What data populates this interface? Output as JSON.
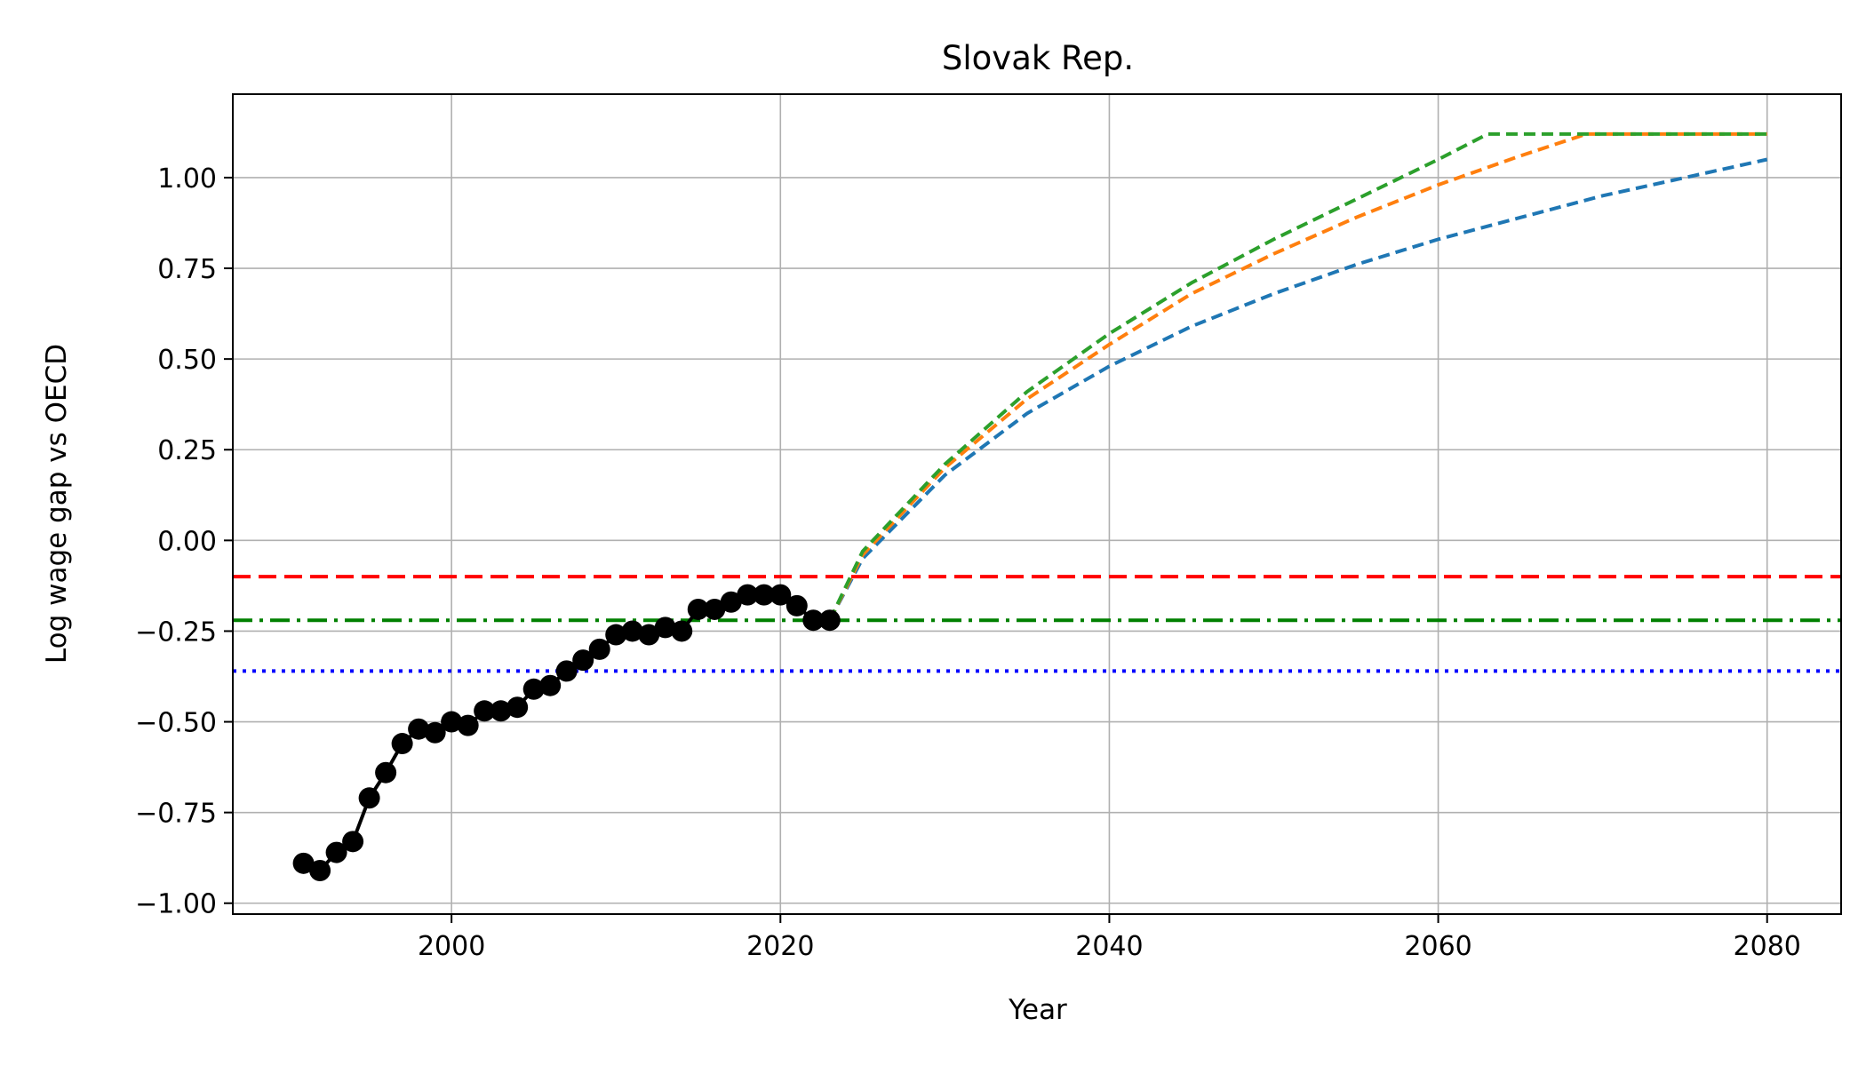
{
  "chart_data": {
    "type": "line",
    "title": "Slovak Rep.",
    "xlabel": "Year",
    "ylabel": "Log wage gap vs OECD",
    "xlim": [
      1986.7,
      2084.5
    ],
    "ylim": [
      -1.03,
      1.23
    ],
    "xticks": [
      2000,
      2020,
      2040,
      2060,
      2080
    ],
    "yticks": [
      -1.0,
      -0.75,
      -0.5,
      -0.25,
      0.0,
      0.25,
      0.5,
      0.75,
      1.0
    ],
    "xtick_labels": [
      "2000",
      "2020",
      "2040",
      "2060",
      "2080"
    ],
    "ytick_labels": [
      "−1.00",
      "−0.75",
      "−0.50",
      "−0.25",
      "0.00",
      "0.25",
      "0.50",
      "0.75",
      "1.00"
    ],
    "grid": true,
    "observed": {
      "color": "#000000",
      "x": [
        1991,
        1992,
        1993,
        1994,
        1995,
        1996,
        1997,
        1998,
        1999,
        2000,
        2001,
        2002,
        2003,
        2004,
        2005,
        2006,
        2007,
        2008,
        2009,
        2010,
        2011,
        2012,
        2013,
        2014,
        2015,
        2016,
        2017,
        2018,
        2019,
        2020,
        2021,
        2022,
        2023
      ],
      "y": [
        -0.89,
        -0.91,
        -0.86,
        -0.83,
        -0.71,
        -0.64,
        -0.56,
        -0.52,
        -0.53,
        -0.5,
        -0.51,
        -0.47,
        -0.47,
        -0.46,
        -0.41,
        -0.4,
        -0.36,
        -0.33,
        -0.3,
        -0.26,
        -0.25,
        -0.26,
        -0.24,
        -0.25,
        -0.19,
        -0.19,
        -0.17,
        -0.15,
        -0.15,
        -0.15,
        -0.18,
        -0.22,
        -0.22
      ]
    },
    "projections": [
      {
        "color": "#1f77b4",
        "x": [
          2023,
          2025,
          2030,
          2035,
          2040,
          2045,
          2050,
          2055,
          2060,
          2065,
          2070,
          2075,
          2080
        ],
        "y": [
          -0.22,
          -0.05,
          0.18,
          0.35,
          0.48,
          0.59,
          0.68,
          0.76,
          0.83,
          0.89,
          0.95,
          1.0,
          1.05
        ]
      },
      {
        "color": "#ff7f0e",
        "x": [
          2023,
          2025,
          2030,
          2035,
          2040,
          2045,
          2050,
          2055,
          2060,
          2065,
          2069,
          2080
        ],
        "y": [
          -0.22,
          -0.04,
          0.2,
          0.39,
          0.54,
          0.68,
          0.79,
          0.89,
          0.98,
          1.06,
          1.12,
          1.12
        ]
      },
      {
        "color": "#2ca02c",
        "x": [
          2023,
          2025,
          2030,
          2035,
          2040,
          2045,
          2050,
          2055,
          2060,
          2063,
          2080
        ],
        "y": [
          -0.22,
          -0.03,
          0.21,
          0.41,
          0.57,
          0.71,
          0.83,
          0.94,
          1.05,
          1.12,
          1.12
        ]
      }
    ],
    "reference_lines": [
      {
        "y": -0.1,
        "color": "#ff0000",
        "style": "dashed"
      },
      {
        "y": -0.22,
        "color": "#008000",
        "style": "dashdot"
      },
      {
        "y": -0.36,
        "color": "#0000ff",
        "style": "dotted"
      }
    ]
  }
}
